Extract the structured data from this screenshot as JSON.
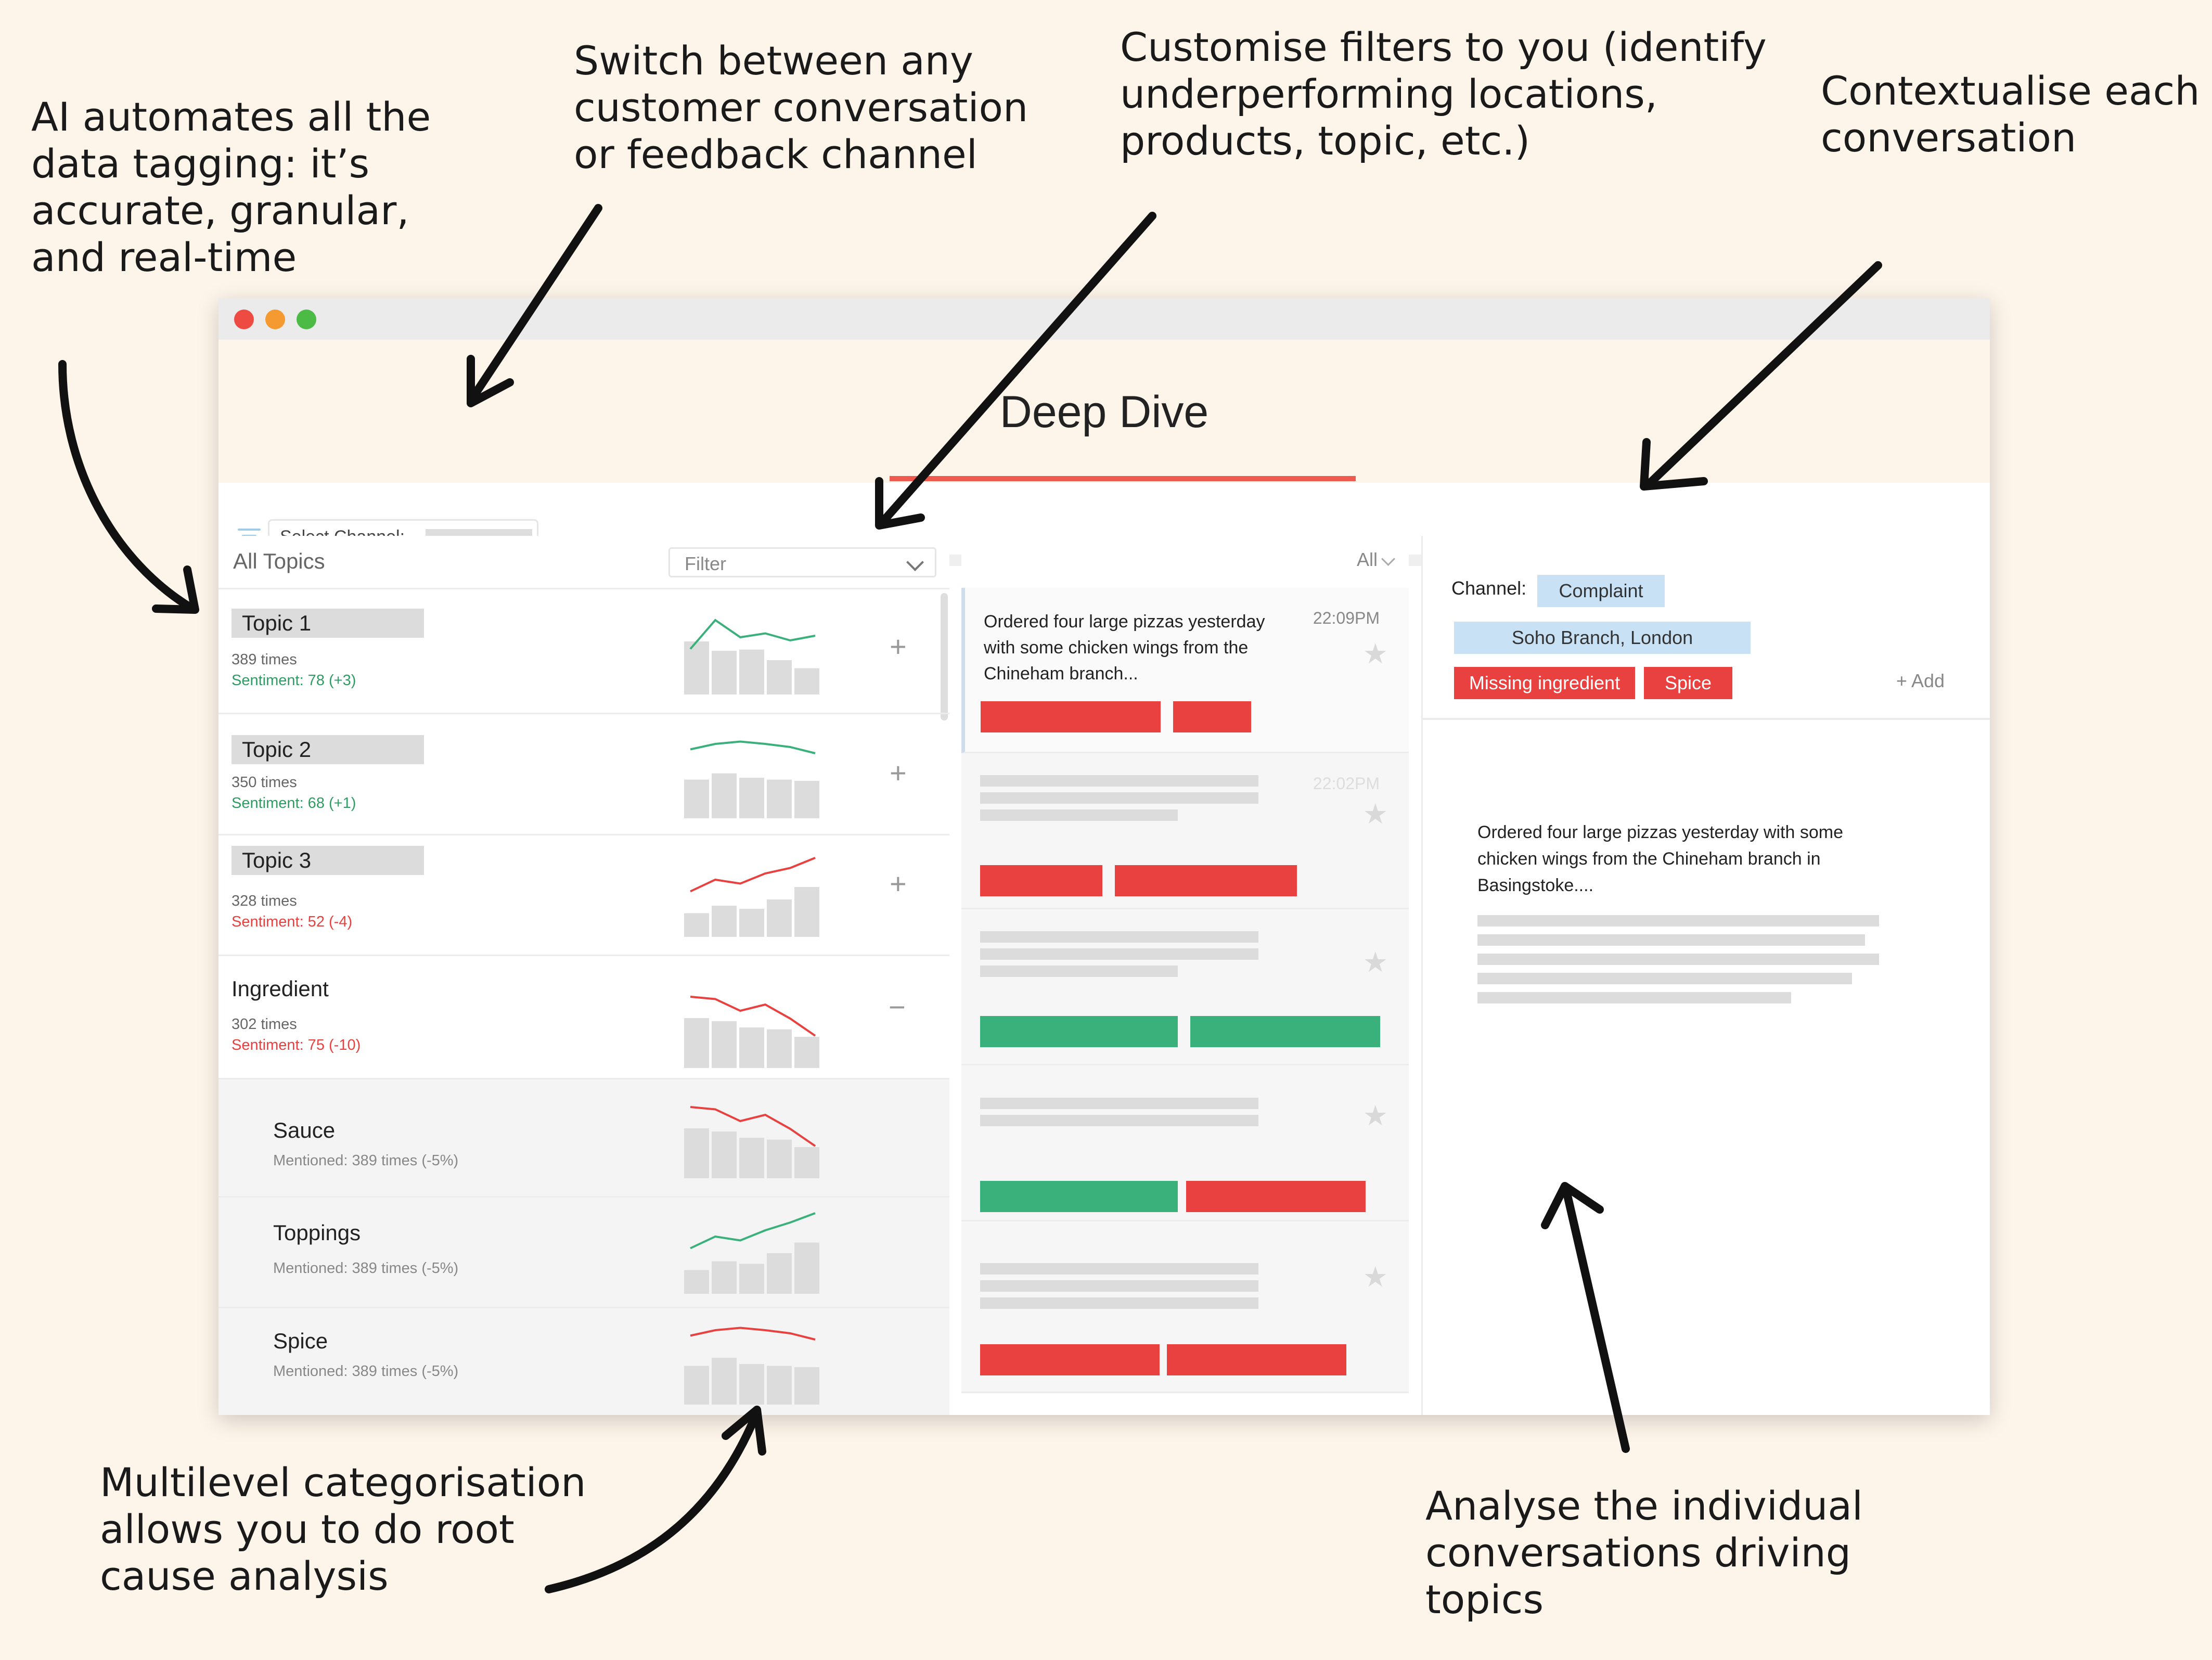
{
  "annotations": {
    "ai_tagging": "AI automates all the\ndata tagging: it’s\naccurate, granular,\nand real-time",
    "switch_channel": "Switch between any\ncustomer conversation\nor feedback channel",
    "customise_filters": "Customise filters to you (identify\nunderperforming locations,\nproducts, topic, etc.)",
    "contextualise": "Contextualise each\nconversation",
    "multilevel": "Multilevel categorisation\nallows you to do root\ncause analysis",
    "analyse": "Analyse the individual\nconversations driving\ntopics"
  },
  "window": {
    "title": "Deep Dive",
    "select_channel_label": "Select Channel:",
    "colors": {
      "close": "#ee4b43",
      "minimize": "#f59a30",
      "maximize": "#4cbb45",
      "accent": "#ee5a4f"
    }
  },
  "topics_panel": {
    "header": "All Topics",
    "filter_label": "Filter",
    "rows": [
      {
        "name": "Topic 1",
        "count": "389 times",
        "sentiment": "Sentiment: 78 (+3)",
        "trend": "positive",
        "expand": "+",
        "bars": [
          0.85,
          0.7,
          0.72,
          0.55,
          0.42
        ],
        "line": [
          0.55,
          0.92,
          0.7,
          0.75,
          0.66,
          0.72
        ]
      },
      {
        "name": "Topic 2",
        "count": "350 times",
        "sentiment": "Sentiment: 68 (+1)",
        "trend": "positive",
        "expand": "+",
        "bars": [
          0.62,
          0.72,
          0.65,
          0.62,
          0.6
        ],
        "line": [
          0.85,
          0.92,
          0.95,
          0.92,
          0.88,
          0.8
        ]
      },
      {
        "name": "Topic 3",
        "count": "328 times",
        "sentiment": "Sentiment: 52 (-4)",
        "trend": "negative",
        "expand": "+",
        "bars": [
          0.38,
          0.5,
          0.45,
          0.6,
          0.8
        ],
        "line": [
          0.55,
          0.7,
          0.65,
          0.78,
          0.85,
          0.98
        ]
      },
      {
        "name": "Ingredient",
        "count": "302 times",
        "sentiment": "Sentiment: 75 (-10)",
        "trend": "negative",
        "expand": "−",
        "bars": [
          0.8,
          0.75,
          0.65,
          0.62,
          0.5
        ],
        "line": [
          0.88,
          0.85,
          0.7,
          0.78,
          0.6,
          0.38
        ]
      },
      {
        "name": "Sauce",
        "count": "Mentioned: 389 times (-5%)",
        "trend": "negative",
        "bars": [
          0.8,
          0.75,
          0.65,
          0.62,
          0.5
        ],
        "line": [
          0.88,
          0.85,
          0.7,
          0.78,
          0.6,
          0.38
        ]
      },
      {
        "name": "Toppings",
        "count": "Mentioned: 389 times (-5%)",
        "trend": "positive",
        "bars": [
          0.38,
          0.52,
          0.48,
          0.65,
          0.82
        ],
        "line": [
          0.55,
          0.7,
          0.65,
          0.78,
          0.88,
          1.0
        ]
      },
      {
        "name": "Spice",
        "count": "Mentioned: 389 times (-5%)",
        "trend": "negative",
        "bars": [
          0.62,
          0.75,
          0.65,
          0.62,
          0.6
        ],
        "line": [
          0.85,
          0.92,
          0.95,
          0.92,
          0.88,
          0.8
        ]
      }
    ]
  },
  "conversations_panel": {
    "filter_label": "All",
    "items": [
      {
        "text": "Ordered four large pizzas yesterday with some chicken wings from the Chineham branch...",
        "time": "22:09PM",
        "tags": [
          "red",
          "red"
        ]
      },
      {
        "text": "",
        "time": "22:02PM",
        "tags": [
          "red",
          "red"
        ]
      },
      {
        "text": "",
        "time": "",
        "tags": [
          "green",
          "green"
        ]
      },
      {
        "text": "",
        "time": "",
        "tags": [
          "green",
          "red"
        ]
      },
      {
        "text": "",
        "time": "",
        "tags": [
          "red",
          "red"
        ]
      }
    ]
  },
  "context_panel": {
    "channel_label": "Channel:",
    "channel_value": "Complaint",
    "location_tag": "Soho Branch, London",
    "tags": [
      "Missing ingredient",
      "Spice"
    ],
    "add_label": "+ Add",
    "message": "Ordered four large pizzas yesterday with some chicken wings from the Chineham branch in Basingstoke....",
    "colors": {
      "tag_blue": "#c8e1f4",
      "tag_red": "#e8413f",
      "tag_green": "#3ab07b"
    }
  }
}
